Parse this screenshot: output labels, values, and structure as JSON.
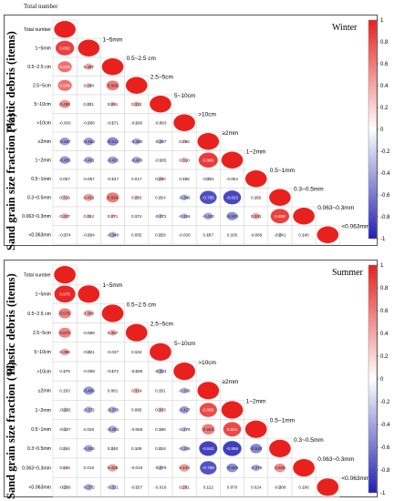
{
  "figure": {
    "caption": "Total number"
  },
  "chart_data": [
    {
      "type": "heatmap",
      "title": "Winter",
      "xlabel": "",
      "ylabel_top": "Plastic debris (items)",
      "ylabel_bottom": "Sand grain size fraction (%)",
      "variables": [
        "Total number",
        "1~5mm",
        "0.5~2.5 cm",
        "2.5~5cm",
        "5~10cm",
        ">10cm",
        "≥2mm",
        "1~2mm",
        "0.5~1mm",
        "0.3~0.5mm",
        "0.063~0.3mm",
        "<0.063mm"
      ],
      "row_labels": [
        "Total number",
        "1~5mm",
        "0.5~2.5 cm",
        "2.5~5cm",
        "5~10cm",
        ">10cm",
        "≥2mm",
        "1~2mm",
        "0.5~1mm",
        "0.3~0.5mm",
        "0.063~0.3mm",
        "<0.063mm"
      ],
      "diag_labels": [
        "",
        "1~5mm",
        "0.5~2.5 cm",
        "2.5~5cm",
        "5~10cm",
        ">10cm",
        "≥2mm",
        "1~2mm",
        "0.5~1mm",
        "0.3~0.5mm",
        "0.063~0.3mm",
        "<0.063mm"
      ],
      "colorbar": {
        "range": [
          -1,
          1
        ],
        "ticks": [
          "1",
          "0.8",
          "0.6",
          "0.4",
          "0.2",
          "0",
          "-0.2",
          "-0.4",
          "-0.6",
          "-0.8",
          "-1"
        ],
        "high_color": "#e8211f",
        "low_color": "#1f1fb3"
      },
      "matrix": [
        [
          1
        ],
        [
          0.862,
          1
        ],
        [
          0.644,
          0.387,
          1
        ],
        [
          0.648,
          0.29,
          0.586,
          1
        ],
        [
          0.49,
          0.231,
          0.291,
          0.322,
          1
        ],
        [
          -0.003,
          -0.168,
          -0.171,
          -0.16,
          -0.093,
          1
        ],
        [
          -0.457,
          -0.453,
          -0.512,
          -0.38,
          -0.297,
          0.256,
          1
        ],
        [
          -0.455,
          -0.401,
          -0.435,
          -0.403,
          -0.165,
          0.31,
          0.886,
          1
        ],
        [
          0.057,
          -0.057,
          -0.147,
          0.017,
          0.29,
          0.166,
          -0.231,
          -0.054,
          1
        ],
        [
          0.316,
          0.433,
          0.594,
          0.263,
          0.214,
          -0.346,
          -0.785,
          -0.823,
          0.156,
          1
        ],
        [
          0.337,
          0.252,
          0.271,
          0.174,
          -0.272,
          -0.316,
          -0.4,
          -0.5,
          0.381,
          0.858,
          1
        ],
        [
          -0.174,
          -0.184,
          -0.348,
          0.055,
          0.229,
          -0.03,
          0.187,
          0.105,
          -0.068,
          -0.241,
          0.14,
          1
        ]
      ]
    },
    {
      "type": "heatmap",
      "title": "Summer",
      "xlabel": "",
      "ylabel_top": "Plastic debris (items)",
      "ylabel_bottom": "Sand grain size fraction (%)",
      "variables": [
        "Total number",
        "1~5mm",
        "0.5~2.5 cm",
        "2.5~5cm",
        "5~10cm",
        ">10cm",
        "≥2mm",
        "1~2mm",
        "0.5~1mm",
        "0.3~0.5mm",
        "0.063~0.3mm",
        "<0.063mm"
      ],
      "row_labels": [
        "Total number",
        "1~5mm",
        "0.5~2.5 cm",
        "2.5~5cm",
        "5~10cm",
        ">10cm",
        "≥2mm",
        "1~2mm",
        "0.5~1mm",
        "0.3~0.5mm",
        "0.063~0.3mm",
        "<0.063mm"
      ],
      "diag_labels": [
        "",
        "1~5mm",
        "0.5~2.5 cm",
        "2.5~5cm",
        "5~10cm",
        ">10cm",
        "≥2mm",
        "1~2mm",
        "0.5~1mm",
        "0.3~0.5mm",
        "0.063~0.3mm",
        "<0.063mm"
      ],
      "colorbar": {
        "range": [
          -1,
          1
        ],
        "ticks": [
          "1",
          "0.8",
          "0.6",
          "0.4",
          "0.2",
          "0",
          "-0.2",
          "-0.4",
          "-0.6",
          "-0.8",
          "-1"
        ],
        "high_color": "#e8211f",
        "low_color": "#1f1fb3"
      },
      "matrix": [
        [
          1
        ],
        [
          0.975,
          1
        ],
        [
          0.576,
          0.386,
          1
        ],
        [
          0.572,
          -0.088,
          0.357,
          1
        ],
        [
          0.396,
          -0.221,
          -0.037,
          0.134,
          1
        ],
        [
          0.179,
          -0.068,
          -0.172,
          -0.169,
          -0.323,
          1
        ],
        [
          0.103,
          -0.469,
          0.081,
          0.314,
          0.151,
          -0.338,
          1
        ],
        [
          -0.265,
          -0.372,
          -0.378,
          0.095,
          0.303,
          -0.427,
          0.809,
          1
        ],
        [
          -0.227,
          0.029,
          -0.404,
          -0.068,
          0.188,
          -0.278,
          0.593,
          0.821,
          1
        ],
        [
          0.244,
          -0.404,
          0.24,
          0.108,
          0.218,
          -0.336,
          -0.841,
          -0.856,
          -0.54,
          1
        ],
        [
          0.246,
          0.019,
          0.429,
          -0.018,
          -0.279,
          0.443,
          -0.769,
          -0.509,
          -0.378,
          0.505,
          1
        ],
        [
          -0.256,
          -0.372,
          -0.321,
          -0.157,
          -0.016,
          0.281,
          0.112,
          0.07,
          0.024,
          -0.208,
          0.106,
          1
        ]
      ]
    }
  ]
}
